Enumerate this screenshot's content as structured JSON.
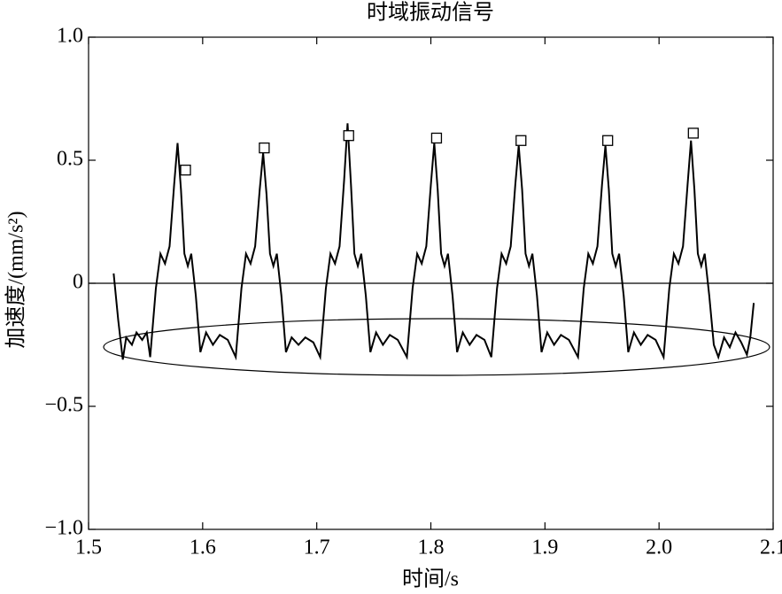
{
  "chart_data": {
    "type": "line",
    "title": "时域振动信号",
    "x_label": "时间/s",
    "y_label": "加速度/(mm/s²)",
    "xlim": [
      1.5,
      2.1
    ],
    "ylim": [
      -1.0,
      1.0
    ],
    "xticks": [
      1.5,
      1.6,
      1.7,
      1.8,
      1.9,
      {
        "value": 2.0,
        "label": "2.0"
      },
      2.1
    ],
    "yticks": [
      {
        "value": 1.0,
        "label": "1.0"
      },
      0.5,
      0,
      {
        "value": -0.5,
        "label": "−0.5"
      },
      {
        "value": -1.0,
        "label": "−1.0"
      }
    ],
    "zero_line": true,
    "series": [
      {
        "color": "#000000",
        "style": "line",
        "x": [
          1.522,
          1.526,
          1.53,
          1.533,
          1.538,
          1.542,
          1.547,
          1.551,
          1.554,
          1.559,
          1.563,
          1.567,
          1.571,
          1.575,
          1.578,
          1.581,
          1.584,
          1.587,
          1.59,
          1.594,
          1.598,
          1.603,
          1.609,
          1.615,
          1.622,
          1.629,
          1.634,
          1.638,
          1.642,
          1.646,
          1.65,
          1.653,
          1.656,
          1.659,
          1.662,
          1.665,
          1.669,
          1.673,
          1.678,
          1.684,
          1.69,
          1.697,
          1.703,
          1.708,
          1.712,
          1.716,
          1.72,
          1.724,
          1.727,
          1.73,
          1.733,
          1.736,
          1.739,
          1.743,
          1.747,
          1.752,
          1.758,
          1.764,
          1.771,
          1.779,
          1.784,
          1.788,
          1.792,
          1.796,
          1.8,
          1.803,
          1.806,
          1.809,
          1.812,
          1.815,
          1.819,
          1.823,
          1.828,
          1.834,
          1.84,
          1.847,
          1.853,
          1.858,
          1.862,
          1.866,
          1.87,
          1.874,
          1.877,
          1.88,
          1.883,
          1.886,
          1.889,
          1.893,
          1.897,
          1.902,
          1.908,
          1.914,
          1.921,
          1.929,
          1.934,
          1.938,
          1.942,
          1.946,
          1.95,
          1.953,
          1.956,
          1.959,
          1.962,
          1.965,
          1.969,
          1.973,
          1.978,
          1.984,
          1.99,
          1.997,
          2.004,
          2.009,
          2.013,
          2.017,
          2.021,
          2.025,
          2.028,
          2.031,
          2.034,
          2.037,
          2.04,
          2.044,
          2.048,
          2.052,
          2.057,
          2.062,
          2.067,
          2.072,
          2.077,
          2.08,
          2.083
        ],
        "values": [
          0.04,
          -0.15,
          -0.31,
          -0.22,
          -0.25,
          -0.2,
          -0.23,
          -0.2,
          -0.3,
          -0.02,
          0.12,
          0.08,
          0.15,
          0.4,
          0.57,
          0.38,
          0.12,
          0.07,
          0.12,
          -0.05,
          -0.28,
          -0.2,
          -0.25,
          -0.21,
          -0.23,
          -0.3,
          -0.02,
          0.12,
          0.08,
          0.15,
          0.38,
          0.53,
          0.36,
          0.12,
          0.07,
          0.12,
          -0.05,
          -0.28,
          -0.22,
          -0.25,
          -0.22,
          -0.24,
          -0.3,
          -0.02,
          0.12,
          0.08,
          0.15,
          0.42,
          0.65,
          0.4,
          0.12,
          0.07,
          0.12,
          -0.05,
          -0.28,
          -0.2,
          -0.25,
          -0.21,
          -0.23,
          -0.3,
          -0.02,
          0.12,
          0.08,
          0.15,
          0.4,
          0.57,
          0.38,
          0.12,
          0.07,
          0.12,
          -0.05,
          -0.28,
          -0.2,
          -0.25,
          -0.21,
          -0.23,
          -0.3,
          -0.02,
          0.12,
          0.08,
          0.15,
          0.4,
          0.56,
          0.38,
          0.12,
          0.07,
          0.12,
          -0.05,
          -0.28,
          -0.2,
          -0.25,
          -0.21,
          -0.23,
          -0.3,
          -0.02,
          0.12,
          0.08,
          0.15,
          0.4,
          0.56,
          0.38,
          0.12,
          0.07,
          0.12,
          -0.05,
          -0.28,
          -0.2,
          -0.25,
          -0.21,
          -0.23,
          -0.3,
          -0.02,
          0.12,
          0.08,
          0.15,
          0.4,
          0.58,
          0.38,
          0.12,
          0.07,
          0.12,
          -0.05,
          -0.25,
          -0.3,
          -0.22,
          -0.26,
          -0.2,
          -0.24,
          -0.29,
          -0.22,
          -0.08
        ]
      },
      {
        "color": "#000000",
        "style": "square-markers",
        "x": [
          1.585,
          1.654,
          1.728,
          1.805,
          1.879,
          1.955,
          2.03
        ],
        "values": [
          0.46,
          0.55,
          0.6,
          0.59,
          0.58,
          0.58,
          0.61
        ]
      }
    ]
  }
}
